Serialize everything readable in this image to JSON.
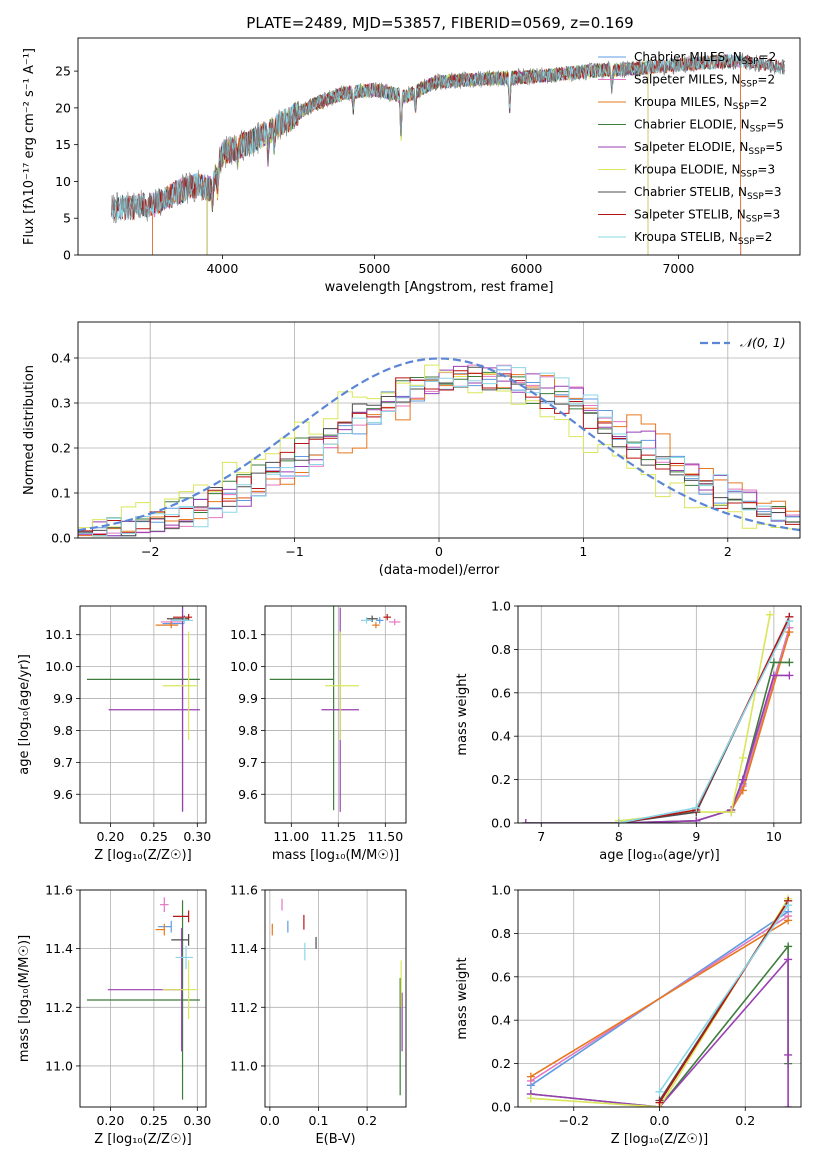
{
  "figure": {
    "title": "PLATE=2489, MJD=53857, FIBERID=0569, z=0.169"
  },
  "colors": {
    "Chabrier MILES": "#5f9be0",
    "Salpeter MILES": "#e377c2",
    "Kroupa MILES": "#e6781e",
    "Chabrier ELODIE": "#3c7d3c",
    "Salpeter ELODIE": "#9a3fb3",
    "Kroupa ELODIE": "#d9e65a",
    "Chabrier STELIB": "#4d4d4d",
    "Salpeter STELIB": "#b71515",
    "Kroupa STELIB": "#8ad6e6",
    "normal_curve": "#5b86d6",
    "grid": "#b0b0b0"
  },
  "chart_data": [
    {
      "id": "spectrum",
      "type": "line",
      "title": "PLATE=2489, MJD=53857, FIBERID=0569, z=0.169",
      "xlabel": "wavelength [Angstrom, rest frame]",
      "ylabel": "Flux [fλ10⁻¹⁷ erg cm⁻² s⁻¹ A⁻¹]",
      "xlim": [
        3050,
        7800
      ],
      "ylim": [
        0,
        29.5
      ],
      "xticks": [
        4000,
        5000,
        6000,
        7000
      ],
      "yticks": [
        0,
        5,
        10,
        15,
        20,
        25
      ],
      "grid": false,
      "legend_position": "right",
      "legend": [
        {
          "name": "Chabrier MILES",
          "nssp": "2"
        },
        {
          "name": "Salpeter MILES",
          "nssp": "2"
        },
        {
          "name": "Kroupa MILES",
          "nssp": "2"
        },
        {
          "name": "Chabrier ELODIE",
          "nssp": "5"
        },
        {
          "name": "Salpeter ELODIE",
          "nssp": "5"
        },
        {
          "name": "Kroupa ELODIE",
          "nssp": "3"
        },
        {
          "name": "Chabrier STELIB",
          "nssp": "3"
        },
        {
          "name": "Salpeter STELIB",
          "nssp": "3"
        },
        {
          "name": "Kroupa STELIB",
          "nssp": "2"
        }
      ],
      "data_color": "#7f7f7f",
      "continuum_knots": [
        [
          3270,
          6.3
        ],
        [
          3550,
          6.8
        ],
        [
          3700,
          8.5
        ],
        [
          3830,
          9.5
        ],
        [
          3920,
          9.0
        ],
        [
          4000,
          13.8
        ],
        [
          4200,
          15.5
        ],
        [
          4400,
          18.0
        ],
        [
          4600,
          20.5
        ],
        [
          4800,
          22.0
        ],
        [
          5000,
          22.5
        ],
        [
          5200,
          21.5
        ],
        [
          5400,
          23.5
        ],
        [
          5600,
          23.8
        ],
        [
          5800,
          24.0
        ],
        [
          6000,
          24.2
        ],
        [
          6200,
          24.5
        ],
        [
          6400,
          25.0
        ],
        [
          6600,
          25.2
        ],
        [
          6800,
          25.5
        ],
        [
          7000,
          25.8
        ],
        [
          7200,
          26.2
        ],
        [
          7400,
          26.4
        ],
        [
          7700,
          25.5
        ]
      ],
      "absorption_lines": [
        [
          3934,
          0.72
        ],
        [
          3969,
          0.75
        ],
        [
          4102,
          0.9
        ],
        [
          4300,
          0.8
        ],
        [
          4340,
          0.88
        ],
        [
          4861,
          0.9
        ],
        [
          5175,
          0.75
        ],
        [
          5270,
          0.9
        ],
        [
          5890,
          0.82
        ],
        [
          6563,
          0.9
        ]
      ],
      "model_ranges": [
        {
          "name": "Chabrier MILES",
          "start": 3540,
          "end": 7410
        },
        {
          "name": "Salpeter MILES",
          "start": 3540,
          "end": 7410
        },
        {
          "name": "Kroupa MILES",
          "start": 3540,
          "end": 7410
        },
        {
          "name": "Chabrier ELODIE",
          "start": 3900,
          "end": 6800
        },
        {
          "name": "Salpeter ELODIE",
          "start": 3900,
          "end": 6800
        },
        {
          "name": "Kroupa ELODIE",
          "start": 3900,
          "end": 6800
        },
        {
          "name": "Chabrier STELIB",
          "start": 3270,
          "end": 7700
        },
        {
          "name": "Salpeter STELIB",
          "start": 3270,
          "end": 7700
        },
        {
          "name": "Kroupa STELIB",
          "start": 3270,
          "end": 7700
        }
      ]
    },
    {
      "id": "residuals",
      "type": "line",
      "xlabel": "(data-model)/error",
      "ylabel": "Normed distribution",
      "xlim": [
        -2.5,
        2.5
      ],
      "ylim": [
        0,
        0.48
      ],
      "xticks": [
        -2,
        -1,
        0,
        1,
        2
      ],
      "yticks": [
        0.0,
        0.1,
        0.2,
        0.3,
        0.4
      ],
      "grid": true,
      "legend_position": "top-right",
      "legend": [
        {
          "name": "𝒩(0, 1)"
        }
      ],
      "bin_width": 0.1,
      "histogram_peak_offsets": {
        "Chabrier MILES": 0.3,
        "Salpeter MILES": 0.35,
        "Kroupa MILES": 0.45,
        "Chabrier ELODIE": 0.2,
        "Salpeter ELODIE": 0.35,
        "Kroupa ELODIE": 0.0,
        "Chabrier STELIB": 0.25,
        "Salpeter STELIB": 0.2,
        "Kroupa STELIB": 0.4
      }
    },
    {
      "id": "age_vs_Z",
      "type": "scatter",
      "xlabel": "Z [log₁₀(Z/Z☉)]",
      "ylabel": "age  [log₁₀(age/yr)]",
      "xlim": [
        0.165,
        0.31
      ],
      "ylim": [
        9.51,
        10.19
      ],
      "xticks": [
        0.2,
        0.25,
        0.3
      ],
      "yticks": [
        9.6,
        9.7,
        9.8,
        9.9,
        10.0,
        10.1
      ],
      "grid": true,
      "points": [
        {
          "series": "Chabrier MILES",
          "x": 0.27,
          "y": 10.135,
          "xerr": [
            0.01,
            0.015
          ],
          "yerr": 0.01
        },
        {
          "series": "Salpeter MILES",
          "x": 0.27,
          "y": 10.14,
          "xerr": [
            0.012,
            0.012
          ],
          "yerr": 0.01
        },
        {
          "series": "Kroupa MILES",
          "x": 0.27,
          "y": 10.13,
          "xerr": [
            0.018,
            0.008
          ],
          "yerr": 0.01
        },
        {
          "series": "Chabrier ELODIE",
          "x": 0.283,
          "y": 9.96,
          "xerr": [
            0.11,
            0.02
          ],
          "yerr": 0.41
        },
        {
          "series": "Salpeter ELODIE",
          "x": 0.283,
          "y": 9.865,
          "xerr": [
            0.085,
            0.02
          ],
          "yerr": 0.32
        },
        {
          "series": "Kroupa ELODIE",
          "x": 0.29,
          "y": 9.94,
          "xerr": [
            0.03,
            0.01
          ],
          "yerr": 0.17
        },
        {
          "series": "Chabrier STELIB",
          "x": 0.285,
          "y": 10.15,
          "xerr": [
            0.02,
            0.005
          ],
          "yerr": 0.01
        },
        {
          "series": "Salpeter STELIB",
          "x": 0.29,
          "y": 10.155,
          "xerr": [
            0.018,
            0.004
          ],
          "yerr": 0.01
        },
        {
          "series": "Kroupa STELIB",
          "x": 0.285,
          "y": 10.145,
          "xerr": [
            0.015,
            0.01
          ],
          "yerr": 0.01
        }
      ]
    },
    {
      "id": "age_vs_mass",
      "type": "scatter",
      "xlabel": "mass [log₁₀(M/M☉)]",
      "ylabel": "",
      "xlim": [
        10.86,
        11.61
      ],
      "ylim": [
        9.51,
        10.19
      ],
      "xticks": [
        11.0,
        11.25,
        11.5
      ],
      "xtick_labels": [
        "11.00",
        "11.25",
        "11.50"
      ],
      "yticks": [
        9.6,
        9.7,
        9.8,
        9.9,
        10.0,
        10.1
      ],
      "grid": true,
      "points": [
        {
          "series": "Chabrier MILES",
          "x": 11.47,
          "y": 10.145,
          "xerr": [
            0.02,
            0.02
          ],
          "yerr": 0.01
        },
        {
          "series": "Salpeter MILES",
          "x": 11.55,
          "y": 10.14,
          "xerr": [
            0.03,
            0.03
          ],
          "yerr": 0.01
        },
        {
          "series": "Kroupa MILES",
          "x": 11.45,
          "y": 10.13,
          "xerr": [
            0.02,
            0.02
          ],
          "yerr": 0.01
        },
        {
          "series": "Chabrier ELODIE",
          "x": 11.225,
          "y": 9.96,
          "xerr": [
            0.34,
            0.0
          ],
          "yerr": 0.41
        },
        {
          "series": "Salpeter ELODIE",
          "x": 11.26,
          "y": 9.865,
          "xerr": [
            0.1,
            0.1
          ],
          "yerr": 0.32
        },
        {
          "series": "Kroupa ELODIE",
          "x": 11.26,
          "y": 9.94,
          "xerr": [
            0.08,
            0.1
          ],
          "yerr": 0.17
        },
        {
          "series": "Chabrier STELIB",
          "x": 11.43,
          "y": 10.15,
          "xerr": [
            0.03,
            0.03
          ],
          "yerr": 0.01
        },
        {
          "series": "Salpeter STELIB",
          "x": 11.51,
          "y": 10.155,
          "xerr": [
            0.02,
            0.02
          ],
          "yerr": 0.01
        },
        {
          "series": "Kroupa STELIB",
          "x": 11.4,
          "y": 10.145,
          "xerr": [
            0.03,
            0.03
          ],
          "yerr": 0.01
        }
      ]
    },
    {
      "id": "mass_weight_vs_age",
      "type": "line",
      "xlabel": "age  [log₁₀(age/yr)]",
      "ylabel": "mass weight",
      "xlim": [
        6.7,
        10.35
      ],
      "ylim": [
        0,
        1.0
      ],
      "xticks": [
        7,
        8,
        9,
        10
      ],
      "yticks": [
        0.0,
        0.2,
        0.4,
        0.6,
        0.8,
        1.0
      ],
      "grid": true,
      "series": [
        {
          "name": "Chabrier MILES",
          "x": [
            9.45,
            9.6,
            10.2
          ],
          "y": [
            0.05,
            0.18,
            0.9
          ]
        },
        {
          "name": "Salpeter MILES",
          "x": [
            9.45,
            9.6,
            10.2
          ],
          "y": [
            0.05,
            0.17,
            0.9
          ]
        },
        {
          "name": "Kroupa MILES",
          "x": [
            9.45,
            9.6,
            10.2
          ],
          "y": [
            0.06,
            0.15,
            0.88
          ]
        },
        {
          "name": "Chabrier ELODIE",
          "x": [
            6.8,
            8.0,
            9.0,
            9.45,
            9.6,
            10.0,
            10.2
          ],
          "y": [
            0.0,
            0.0,
            0.01,
            0.06,
            0.2,
            0.74,
            0.74
          ]
        },
        {
          "name": "Salpeter ELODIE",
          "x": [
            6.8,
            8.0,
            9.0,
            9.45,
            9.6,
            10.0,
            10.2
          ],
          "y": [
            0.0,
            0.0,
            0.01,
            0.06,
            0.2,
            0.68,
            0.68
          ]
        },
        {
          "name": "Kroupa ELODIE",
          "x": [
            8.0,
            9.0,
            9.45,
            9.6,
            9.95
          ],
          "y": [
            0.01,
            0.05,
            0.05,
            0.3,
            0.96
          ]
        },
        {
          "name": "Chabrier STELIB",
          "x": [
            8.0,
            9.0,
            10.2
          ],
          "y": [
            0.0,
            0.05,
            0.95
          ]
        },
        {
          "name": "Salpeter STELIB",
          "x": [
            8.0,
            9.0,
            10.2
          ],
          "y": [
            0.0,
            0.06,
            0.95
          ]
        },
        {
          "name": "Kroupa STELIB",
          "x": [
            8.0,
            9.0,
            10.2
          ],
          "y": [
            0.0,
            0.07,
            0.93
          ]
        }
      ]
    },
    {
      "id": "mass_vs_Z",
      "type": "scatter",
      "xlabel": "Z [log₁₀(Z/Z☉)]",
      "ylabel": "mass [log₁₀(M/M☉)]",
      "xlim": [
        0.165,
        0.31
      ],
      "ylim": [
        10.86,
        11.6
      ],
      "xticks": [
        0.2,
        0.25,
        0.3
      ],
      "yticks": [
        11.0,
        11.2,
        11.4,
        11.6
      ],
      "grid": true,
      "points": [
        {
          "series": "Chabrier MILES",
          "x": 0.27,
          "y": 11.475,
          "xerr": [
            0.015,
            0.0
          ],
          "yerr": 0.02
        },
        {
          "series": "Salpeter MILES",
          "x": 0.262,
          "y": 11.55,
          "xerr": [
            0.005,
            0.005
          ],
          "yerr": 0.025
        },
        {
          "series": "Kroupa MILES",
          "x": 0.262,
          "y": 11.465,
          "xerr": [
            0.01,
            0.0
          ],
          "yerr": 0.02
        },
        {
          "series": "Chabrier ELODIE",
          "x": 0.283,
          "y": 11.225,
          "xerr": [
            0.11,
            0.02
          ],
          "yerr": 0.34
        },
        {
          "series": "Salpeter ELODIE",
          "x": 0.282,
          "y": 11.26,
          "xerr": [
            0.085,
            0.0
          ],
          "yerr": 0.21
        },
        {
          "series": "Kroupa ELODIE",
          "x": 0.29,
          "y": 11.26,
          "xerr": [
            0.03,
            0.01
          ],
          "yerr": 0.1
        },
        {
          "series": "Chabrier STELIB",
          "x": 0.29,
          "y": 11.43,
          "xerr": [
            0.02,
            0.0
          ],
          "yerr": 0.02
        },
        {
          "series": "Salpeter STELIB",
          "x": 0.29,
          "y": 11.51,
          "xerr": [
            0.018,
            0.0
          ],
          "yerr": 0.02
        },
        {
          "series": "Kroupa STELIB",
          "x": 0.287,
          "y": 11.37,
          "xerr": [
            0.012,
            0.008
          ],
          "yerr": 0.04
        }
      ]
    },
    {
      "id": "mass_vs_ebv",
      "type": "scatter",
      "xlabel": "E(B-V)",
      "ylabel": "",
      "xlim": [
        -0.01,
        0.28
      ],
      "ylim": [
        10.86,
        11.6
      ],
      "xticks": [
        0.0,
        0.1,
        0.2
      ],
      "yticks": [
        11.0,
        11.2,
        11.4,
        11.6
      ],
      "grid": true,
      "points": [
        {
          "series": "Chabrier MILES",
          "x": 0.037,
          "y": 11.475,
          "xerr": [
            0.0,
            0.0
          ],
          "yerr": 0.02
        },
        {
          "series": "Salpeter MILES",
          "x": 0.025,
          "y": 11.55,
          "xerr": [
            0.0,
            0.0
          ],
          "yerr": 0.02
        },
        {
          "series": "Kroupa MILES",
          "x": 0.005,
          "y": 11.465,
          "xerr": [
            0.0,
            0.0
          ],
          "yerr": 0.02
        },
        {
          "series": "Chabrier ELODIE",
          "x": 0.268,
          "y": 11.1,
          "xerr": [
            0.0,
            0.0
          ],
          "yerr": 0.2
        },
        {
          "series": "Salpeter ELODIE",
          "x": 0.272,
          "y": 11.15,
          "xerr": [
            0.0,
            0.0
          ],
          "yerr": 0.1
        },
        {
          "series": "Kroupa ELODIE",
          "x": 0.27,
          "y": 11.28,
          "xerr": [
            0.0,
            0.0
          ],
          "yerr": 0.08
        },
        {
          "series": "Chabrier STELIB",
          "x": 0.095,
          "y": 11.42,
          "xerr": [
            0.0,
            0.0
          ],
          "yerr": 0.02
        },
        {
          "series": "Salpeter STELIB",
          "x": 0.07,
          "y": 11.49,
          "xerr": [
            0.0,
            0.0
          ],
          "yerr": 0.025
        },
        {
          "series": "Kroupa STELIB",
          "x": 0.072,
          "y": 11.39,
          "xerr": [
            0.0,
            0.0
          ],
          "yerr": 0.03
        }
      ]
    },
    {
      "id": "mass_weight_vs_Z",
      "type": "line",
      "xlabel": "Z [log₁₀(Z/Z☉)]",
      "ylabel": "mass weight",
      "xlim": [
        -0.33,
        0.33
      ],
      "ylim": [
        0,
        1.0
      ],
      "xticks": [
        -0.2,
        0.0,
        0.2
      ],
      "xtick_labels": [
        "−0.2",
        "0.0",
        "0.2"
      ],
      "yticks": [
        0.0,
        0.2,
        0.4,
        0.6,
        0.8,
        1.0
      ],
      "grid": true,
      "series": [
        {
          "name": "Chabrier MILES",
          "x": [
            -0.3,
            0.3
          ],
          "y": [
            0.1,
            0.9
          ]
        },
        {
          "name": "Salpeter MILES",
          "x": [
            -0.3,
            0.3
          ],
          "y": [
            0.12,
            0.88
          ]
        },
        {
          "name": "Kroupa MILES",
          "x": [
            -0.3,
            0.3
          ],
          "y": [
            0.14,
            0.86
          ]
        },
        {
          "name": "Chabrier ELODIE",
          "x": [
            -0.3,
            0.0,
            0.3,
            0.3
          ],
          "y": [
            0.06,
            0.0,
            0.74,
            0.2
          ]
        },
        {
          "name": "Salpeter ELODIE",
          "x": [
            -0.3,
            0.0,
            0.3,
            0.3,
            0.3
          ],
          "y": [
            0.06,
            0.0,
            0.68,
            0.24,
            0.0
          ]
        },
        {
          "name": "Kroupa ELODIE",
          "x": [
            -0.3,
            0.0,
            0.3
          ],
          "y": [
            0.04,
            0.0,
            0.96
          ]
        },
        {
          "name": "Chabrier STELIB",
          "x": [
            0.0,
            0.3
          ],
          "y": [
            0.03,
            0.95
          ]
        },
        {
          "name": "Salpeter STELIB",
          "x": [
            0.0,
            0.3
          ],
          "y": [
            0.02,
            0.95
          ]
        },
        {
          "name": "Kroupa STELIB",
          "x": [
            0.0,
            0.3
          ],
          "y": [
            0.07,
            0.93
          ]
        }
      ]
    }
  ]
}
